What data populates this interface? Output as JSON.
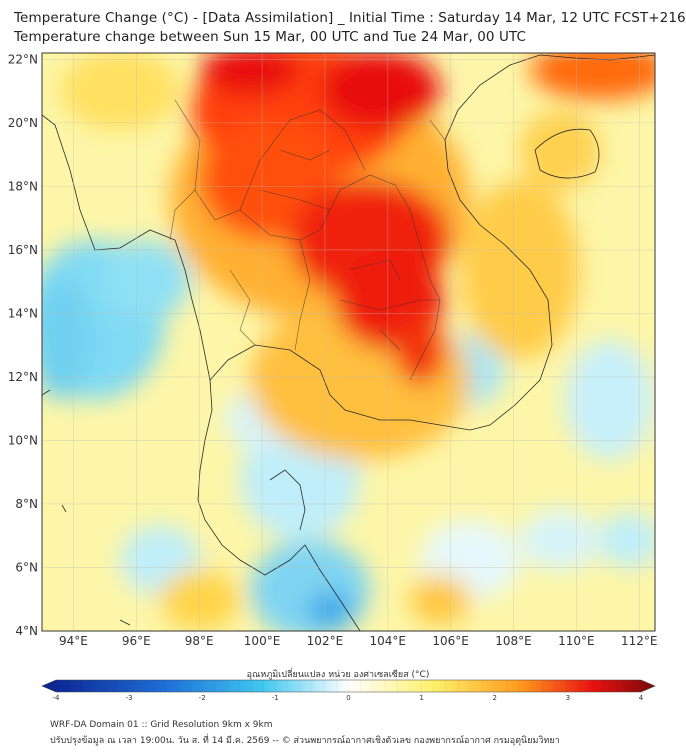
{
  "header": {
    "title_line1": "Temperature Change (°C) - [Data Assimilation] _ Initial Time : Saturday 14 Mar, 12 UTC FCST+216",
    "title_line2": "Temperature change between Sun 15 Mar, 00 UTC and Tue 24 Mar, 00 UTC"
  },
  "map": {
    "lon_min": 93,
    "lon_max": 112.5,
    "lat_min": 4,
    "lat_max": 22.2,
    "lat_ticks": [
      {
        "value": 22,
        "label": "22°N"
      },
      {
        "value": 20,
        "label": "20°N"
      },
      {
        "value": 18,
        "label": "18°N"
      },
      {
        "value": 16,
        "label": "16°N"
      },
      {
        "value": 14,
        "label": "14°N"
      },
      {
        "value": 12,
        "label": "12°N"
      },
      {
        "value": 10,
        "label": "10°N"
      },
      {
        "value": 8,
        "label": "8°N"
      },
      {
        "value": 6,
        "label": "6°N"
      },
      {
        "value": 4,
        "label": "4°N"
      }
    ],
    "lon_ticks": [
      {
        "value": 94,
        "label": "94°E"
      },
      {
        "value": 96,
        "label": "96°E"
      },
      {
        "value": 98,
        "label": "98°E"
      },
      {
        "value": 100,
        "label": "100°E"
      },
      {
        "value": 102,
        "label": "102°E"
      },
      {
        "value": 104,
        "label": "104°E"
      },
      {
        "value": 106,
        "label": "106°E"
      },
      {
        "value": 108,
        "label": "108°E"
      },
      {
        "value": 110,
        "label": "110°E"
      },
      {
        "value": 112,
        "label": "112°E"
      }
    ]
  },
  "colorbar": {
    "title": "อุณหภูมิเปลี่ยนแปลง หน่วย องศาเซลเซียส (°C)",
    "min": -4,
    "max": 4,
    "tick_values": [
      -4,
      -3,
      -2,
      -1,
      0,
      1,
      2,
      3,
      4
    ],
    "tick_labels": [
      "-4",
      "-3",
      "-2",
      "-1",
      "0",
      "1",
      "2",
      "3",
      "4"
    ]
  },
  "footer": {
    "line1": "WRF-DA Domain 01 :: Grid Resolution 9km x 9km",
    "line2": "ปรับปรุงข้อมูล ณ เวลา 19:00น. วัน ส. ที่ 14 มี.ค. 2569 -- © ส่วนพยากรณ์อากาศเชิงตัวเลข กองพยากรณ์อากาศ กรมอุตุนิยมวิทยา"
  },
  "colors": {
    "neg_strong": "#0a1e8c",
    "neg_mid": "#1e6fd8",
    "neg_light": "#40c8f0",
    "neutral": "#ffffff",
    "pos_light": "#fff06a",
    "pos_mid": "#ff9a1e",
    "pos_strong": "#e81010",
    "pos_max": "#7a0a0a"
  }
}
